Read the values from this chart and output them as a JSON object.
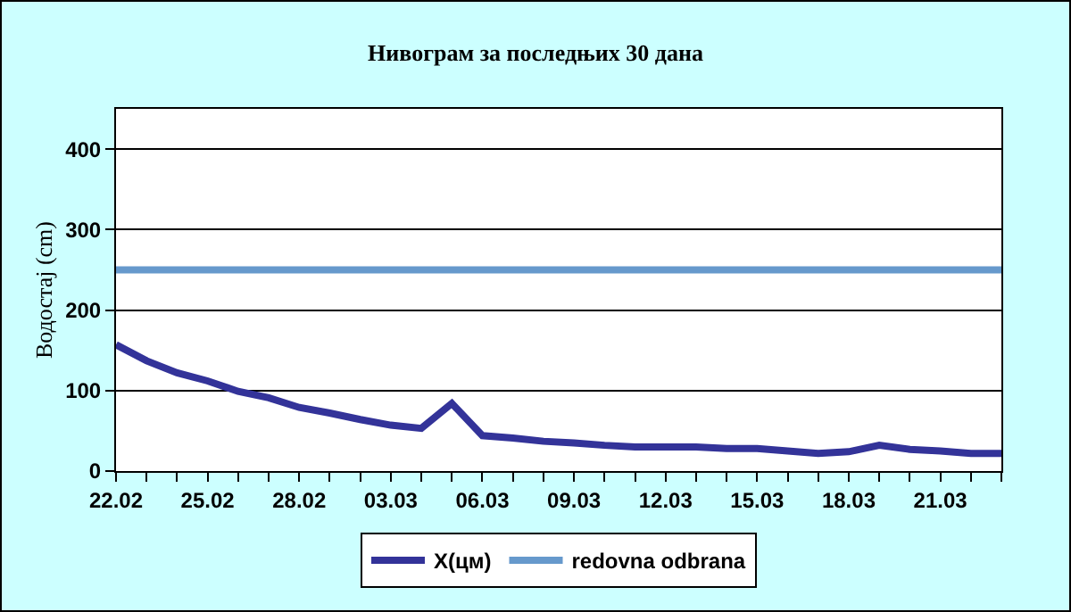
{
  "chart_data": {
    "type": "line",
    "title": "Нивограм за последњих 30 дана",
    "ylabel": "Водостај (cm)",
    "categories": [
      "22.02",
      null,
      null,
      "25.02",
      null,
      null,
      "28.02",
      null,
      null,
      "03.03",
      null,
      null,
      "06.03",
      null,
      null,
      "09.03",
      null,
      null,
      "12.03",
      null,
      null,
      "15.03",
      null,
      null,
      "18.03",
      null,
      null,
      "21.03",
      null,
      null
    ],
    "series": [
      {
        "name": "X(цм)",
        "color": "#333399",
        "values": [
          157,
          137,
          122,
          112,
          99,
          91,
          79,
          72,
          64,
          57,
          53,
          84,
          44,
          41,
          37,
          35,
          32,
          30,
          30,
          30,
          28,
          28,
          25,
          22,
          24,
          32,
          27,
          25,
          22,
          22
        ]
      },
      {
        "name": "redovna odbrana",
        "color": "#6699cc",
        "values": [
          250,
          250,
          250,
          250,
          250,
          250,
          250,
          250,
          250,
          250,
          250,
          250,
          250,
          250,
          250,
          250,
          250,
          250,
          250,
          250,
          250,
          250,
          250,
          250,
          250,
          250,
          250,
          250,
          250,
          250
        ]
      }
    ],
    "ylim": [
      0,
      450
    ],
    "yticks": [
      0,
      100,
      200,
      300,
      400
    ],
    "grid": "y",
    "legend": "bottom",
    "marker": "none",
    "line_style": "solid"
  }
}
